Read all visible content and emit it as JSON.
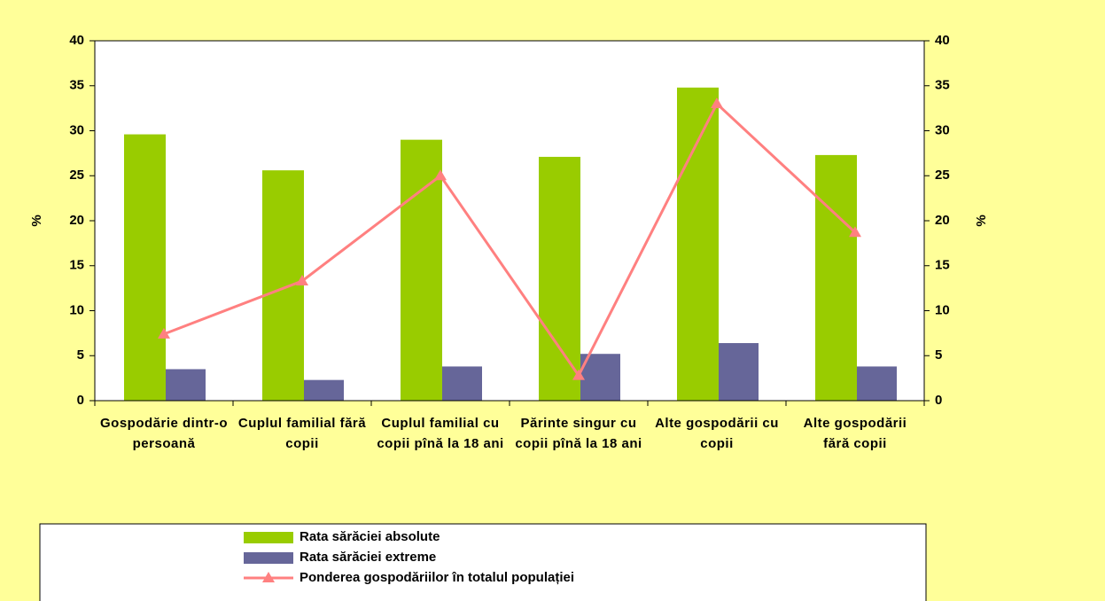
{
  "chart_data": {
    "type": "bar",
    "categories": [
      "Gospodărie dintr-o persoană",
      "Cuplul familial fără copii",
      "Cuplul familial cu copii pînă la 18 ani",
      "Părinte singur cu copii pînă la 18 ani",
      "Alte gospodării cu copii",
      "Alte gospodării fără copii"
    ],
    "series": [
      {
        "name": "Rata sărăciei absolute",
        "type": "bar",
        "color": "#99cc00",
        "values": [
          29.6,
          25.6,
          29.0,
          27.1,
          34.8,
          27.3
        ]
      },
      {
        "name": "Rata sărăciei extreme",
        "type": "bar",
        "color": "#666699",
        "values": [
          3.5,
          2.3,
          3.8,
          5.2,
          6.4,
          3.8
        ]
      },
      {
        "name": "Ponderea gospodăriilor în totalul populației",
        "type": "line",
        "axis": "y2",
        "color": "#ff8080",
        "values": [
          7.4,
          13.3,
          25.0,
          2.8,
          33.0,
          18.7
        ]
      }
    ],
    "ylabel": "%",
    "y2label": "%",
    "ylim": [
      0,
      40
    ],
    "yticks": [
      0,
      5,
      10,
      15,
      20,
      25,
      30,
      35,
      40
    ],
    "y2lim": [
      0,
      40
    ],
    "y2ticks": [
      0,
      5,
      10,
      15,
      20,
      25,
      30,
      35,
      40
    ],
    "legend": "bottom"
  }
}
